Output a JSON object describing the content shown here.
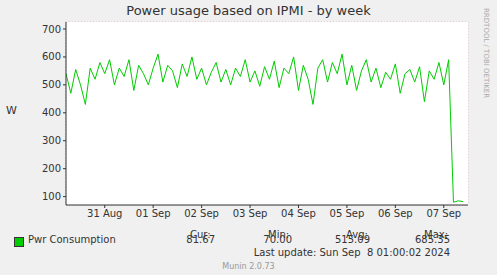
{
  "chart_data": {
    "type": "line",
    "title": "Power usage based on IPMI - by week",
    "y_label": "W",
    "x": [
      -0.3,
      -0.2,
      -0.1,
      0.0,
      0.1,
      0.2,
      0.3,
      0.4,
      0.5,
      0.6,
      0.7,
      0.8,
      0.9,
      1.0,
      1.1,
      1.2,
      1.3,
      1.4,
      1.5,
      1.6,
      1.7,
      1.8,
      1.9,
      2.0,
      2.1,
      2.2,
      2.3,
      2.4,
      2.5,
      2.6,
      2.7,
      2.8,
      2.9,
      3.0,
      3.1,
      3.2,
      3.3,
      3.4,
      3.5,
      3.6,
      3.7,
      3.8,
      3.9,
      4.0,
      4.1,
      4.2,
      4.3,
      4.4,
      4.5,
      4.6,
      4.7,
      4.8,
      4.9,
      5.0,
      5.1,
      5.2,
      5.3,
      5.4,
      5.5,
      5.6,
      5.7,
      5.8,
      5.9,
      6.0,
      6.1,
      6.2,
      6.3,
      6.4,
      6.5,
      6.6,
      6.7,
      6.8,
      6.9,
      7.0,
      7.1,
      7.2,
      7.3,
      7.4,
      7.5,
      7.6,
      7.7,
      7.8,
      7.9
    ],
    "series": [
      {
        "name": "Pwr Consumption",
        "color": "#00cc00",
        "values": [
          540,
          470,
          555,
          500,
          430,
          560,
          520,
          580,
          540,
          590,
          500,
          560,
          530,
          590,
          480,
          570,
          540,
          500,
          560,
          610,
          510,
          570,
          550,
          490,
          575,
          530,
          600,
          520,
          560,
          500,
          545,
          580,
          510,
          555,
          500,
          560,
          530,
          590,
          510,
          550,
          495,
          565,
          520,
          585,
          490,
          560,
          540,
          600,
          480,
          570,
          520,
          430,
          560,
          590,
          510,
          580,
          540,
          610,
          500,
          570,
          480,
          550,
          590,
          510,
          560,
          490,
          545,
          520,
          575,
          470,
          540,
          555,
          510,
          565,
          440,
          550,
          520,
          580,
          500,
          590,
          80,
          85,
          82
        ]
      }
    ],
    "xlim": [
      -0.3,
      8.0
    ],
    "xticks": [
      {
        "value": 0.5,
        "label": "31 Aug"
      },
      {
        "value": 1.5,
        "label": "01 Sep"
      },
      {
        "value": 2.5,
        "label": "02 Sep"
      },
      {
        "value": 3.5,
        "label": "03 Sep"
      },
      {
        "value": 4.5,
        "label": "04 Sep"
      },
      {
        "value": 5.5,
        "label": "05 Sep"
      },
      {
        "value": 6.5,
        "label": "06 Sep"
      },
      {
        "value": 7.5,
        "label": "07 Sep"
      }
    ],
    "ylim": [
      70,
      725
    ],
    "yticks": [
      100,
      200,
      300,
      400,
      500,
      600,
      700
    ],
    "grid": true,
    "summary": {
      "headers": [
        "Cur:",
        "Min:",
        "Avg:",
        "Max:"
      ],
      "cells": [
        "81.67",
        "70.00",
        "515.09",
        "685.35"
      ]
    },
    "last_update": "Last update: Sun Sep  8 01:00:02 2024",
    "generator": "Munin 2.0.73",
    "side_label": "RRDTOOL / TOBI OETIKER"
  }
}
